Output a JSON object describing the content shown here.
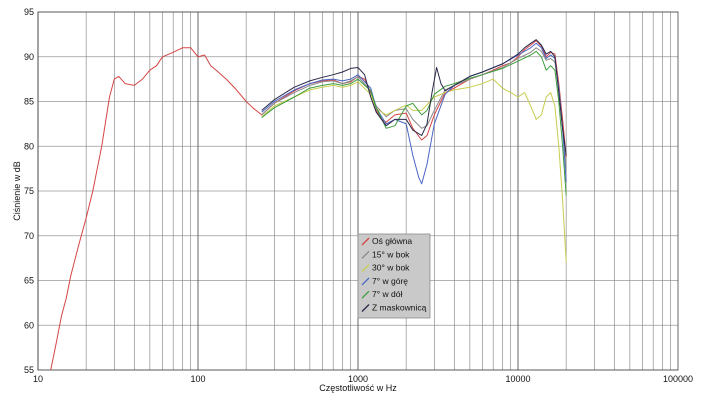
{
  "chart_data": {
    "type": "line",
    "title": "",
    "xlabel": "Częstotliwość w Hz",
    "ylabel": "Ciśnienie w dB",
    "x_scale": "log",
    "xlim": [
      10,
      100000
    ],
    "ylim": [
      55,
      95
    ],
    "grid": true,
    "legend_position": "center",
    "x_tick_labels": [
      "10",
      "100",
      "1000",
      "10000",
      "100000"
    ],
    "x_tick_values": [
      10,
      100,
      1000,
      10000,
      100000
    ],
    "y_tick_values": [
      55,
      60,
      65,
      70,
      75,
      80,
      85,
      90,
      95
    ],
    "series": [
      {
        "name": "Oś główna",
        "color": "#d64545",
        "points": [
          [
            12,
            55
          ],
          [
            13,
            58
          ],
          [
            14,
            61
          ],
          [
            15,
            63
          ],
          [
            16,
            65.5
          ],
          [
            18,
            69
          ],
          [
            20,
            72
          ],
          [
            22,
            75
          ],
          [
            25,
            80
          ],
          [
            28,
            85.5
          ],
          [
            30,
            87.5
          ],
          [
            32,
            87.8
          ],
          [
            35,
            87
          ],
          [
            40,
            86.8
          ],
          [
            45,
            87.5
          ],
          [
            50,
            88.5
          ],
          [
            55,
            89
          ],
          [
            60,
            90
          ],
          [
            70,
            90.5
          ],
          [
            80,
            91
          ],
          [
            90,
            91
          ],
          [
            100,
            90
          ],
          [
            110,
            90.2
          ],
          [
            120,
            89
          ],
          [
            130,
            88.5
          ],
          [
            150,
            87.5
          ],
          [
            170,
            86.5
          ],
          [
            200,
            85
          ],
          [
            220,
            84.3
          ],
          [
            250,
            83.5
          ],
          [
            300,
            84.8
          ],
          [
            400,
            86.2
          ],
          [
            500,
            87
          ],
          [
            600,
            87.3
          ],
          [
            700,
            87.4
          ],
          [
            800,
            87
          ],
          [
            900,
            87.2
          ],
          [
            1000,
            87.8
          ],
          [
            1100,
            87.5
          ],
          [
            1200,
            86
          ],
          [
            1300,
            84
          ],
          [
            1400,
            83
          ],
          [
            1500,
            82.7
          ],
          [
            1700,
            83.5
          ],
          [
            2000,
            83.7
          ],
          [
            2200,
            82
          ],
          [
            2500,
            80.7
          ],
          [
            2700,
            81.2
          ],
          [
            3000,
            83.5
          ],
          [
            3500,
            86
          ],
          [
            4000,
            86.5
          ],
          [
            5000,
            87.5
          ],
          [
            6000,
            88
          ],
          [
            7000,
            88.5
          ],
          [
            8000,
            89
          ],
          [
            9000,
            89.3
          ],
          [
            10000,
            90
          ],
          [
            11000,
            90.8
          ],
          [
            12000,
            91.3
          ],
          [
            13000,
            91.8
          ],
          [
            14000,
            91.2
          ],
          [
            15000,
            90
          ],
          [
            16000,
            90.5
          ],
          [
            17000,
            90.3
          ],
          [
            18000,
            87
          ],
          [
            19000,
            83
          ],
          [
            20000,
            78.8
          ]
        ]
      },
      {
        "name": "15° w bok",
        "color": "#8a8a8a",
        "points": [
          [
            250,
            83.5
          ],
          [
            300,
            84.8
          ],
          [
            400,
            86
          ],
          [
            500,
            86.8
          ],
          [
            600,
            87.2
          ],
          [
            700,
            87.3
          ],
          [
            800,
            87
          ],
          [
            900,
            87.3
          ],
          [
            1000,
            87.8
          ],
          [
            1200,
            86.2
          ],
          [
            1300,
            84.5
          ],
          [
            1500,
            83.3
          ],
          [
            1700,
            84
          ],
          [
            2000,
            84.2
          ],
          [
            2200,
            83
          ],
          [
            2500,
            82
          ],
          [
            2700,
            82.3
          ],
          [
            3000,
            84
          ],
          [
            3500,
            86.3
          ],
          [
            4000,
            86.8
          ],
          [
            5000,
            87.5
          ],
          [
            6000,
            88
          ],
          [
            8000,
            88.8
          ],
          [
            10000,
            89.8
          ],
          [
            12000,
            90.5
          ],
          [
            13000,
            91
          ],
          [
            14000,
            90.6
          ],
          [
            15000,
            89.6
          ],
          [
            16000,
            89.8
          ],
          [
            17000,
            89.4
          ],
          [
            18000,
            86.5
          ],
          [
            19000,
            82
          ],
          [
            20000,
            77.5
          ]
        ]
      },
      {
        "name": "30° w bok",
        "color": "#c8cd4f",
        "points": [
          [
            250,
            83.3
          ],
          [
            300,
            84.5
          ],
          [
            400,
            85.5
          ],
          [
            500,
            86.3
          ],
          [
            600,
            86.6
          ],
          [
            700,
            86.8
          ],
          [
            800,
            86.6
          ],
          [
            900,
            86.8
          ],
          [
            1000,
            87.2
          ],
          [
            1200,
            85.8
          ],
          [
            1300,
            84.2
          ],
          [
            1500,
            83.5
          ],
          [
            1700,
            84
          ],
          [
            2000,
            84.6
          ],
          [
            2200,
            84
          ],
          [
            2500,
            84
          ],
          [
            3000,
            85.5
          ],
          [
            3500,
            86
          ],
          [
            4000,
            86.3
          ],
          [
            5000,
            86.6
          ],
          [
            6000,
            87
          ],
          [
            7000,
            87.5
          ],
          [
            8000,
            86.5
          ],
          [
            9000,
            86
          ],
          [
            10000,
            85.5
          ],
          [
            11000,
            86
          ],
          [
            12000,
            84.5
          ],
          [
            13000,
            83
          ],
          [
            14000,
            83.5
          ],
          [
            15000,
            85.5
          ],
          [
            16000,
            86
          ],
          [
            17000,
            84.5
          ],
          [
            18000,
            80
          ],
          [
            19000,
            74
          ],
          [
            20000,
            67
          ]
        ]
      },
      {
        "name": "7° w górę",
        "color": "#4a64c4",
        "points": [
          [
            250,
            83.8
          ],
          [
            300,
            85
          ],
          [
            400,
            86.3
          ],
          [
            500,
            87
          ],
          [
            600,
            87.4
          ],
          [
            700,
            87.5
          ],
          [
            800,
            87.3
          ],
          [
            900,
            87.5
          ],
          [
            1000,
            88
          ],
          [
            1200,
            86.5
          ],
          [
            1300,
            84.3
          ],
          [
            1500,
            82.5
          ],
          [
            1700,
            83
          ],
          [
            2000,
            82.5
          ],
          [
            2200,
            79
          ],
          [
            2400,
            76.5
          ],
          [
            2500,
            75.8
          ],
          [
            2700,
            78
          ],
          [
            3000,
            82.5
          ],
          [
            3500,
            85.8
          ],
          [
            4000,
            86.8
          ],
          [
            5000,
            87.8
          ],
          [
            6000,
            88.3
          ],
          [
            8000,
            89.2
          ],
          [
            10000,
            90.2
          ],
          [
            12000,
            91
          ],
          [
            13000,
            91.5
          ],
          [
            14000,
            91
          ],
          [
            15000,
            89.8
          ],
          [
            16000,
            90.2
          ],
          [
            17000,
            89.8
          ],
          [
            18000,
            86.5
          ],
          [
            19000,
            82
          ],
          [
            20000,
            76
          ]
        ]
      },
      {
        "name": "7° w dół",
        "color": "#3f9e3f",
        "points": [
          [
            250,
            83.2
          ],
          [
            300,
            84.3
          ],
          [
            400,
            85.5
          ],
          [
            500,
            86.5
          ],
          [
            600,
            86.8
          ],
          [
            700,
            87
          ],
          [
            800,
            86.8
          ],
          [
            900,
            87
          ],
          [
            1000,
            87.5
          ],
          [
            1200,
            86.2
          ],
          [
            1300,
            84.3
          ],
          [
            1500,
            82
          ],
          [
            1700,
            82.3
          ],
          [
            2000,
            84.5
          ],
          [
            2200,
            84.8
          ],
          [
            2500,
            83.5
          ],
          [
            2700,
            84
          ],
          [
            3000,
            85.8
          ],
          [
            3500,
            86.7
          ],
          [
            4000,
            87
          ],
          [
            5000,
            87.6
          ],
          [
            6000,
            88
          ],
          [
            8000,
            88.7
          ],
          [
            10000,
            89.5
          ],
          [
            12000,
            90.2
          ],
          [
            13000,
            90.6
          ],
          [
            14000,
            90
          ],
          [
            15000,
            88.5
          ],
          [
            16000,
            89
          ],
          [
            17000,
            88.5
          ],
          [
            18000,
            85
          ],
          [
            19000,
            80
          ],
          [
            20000,
            74.5
          ]
        ]
      },
      {
        "name": "Z maskownicą",
        "color": "#2a2a4a",
        "points": [
          [
            250,
            84
          ],
          [
            300,
            85.2
          ],
          [
            400,
            86.6
          ],
          [
            500,
            87.3
          ],
          [
            600,
            87.7
          ],
          [
            700,
            88
          ],
          [
            800,
            88.3
          ],
          [
            900,
            88.7
          ],
          [
            1000,
            88.8
          ],
          [
            1100,
            88
          ],
          [
            1200,
            85.5
          ],
          [
            1300,
            83.8
          ],
          [
            1500,
            82.3
          ],
          [
            1700,
            83
          ],
          [
            2000,
            83
          ],
          [
            2200,
            81.8
          ],
          [
            2500,
            81.2
          ],
          [
            2700,
            82.5
          ],
          [
            2900,
            86
          ],
          [
            3100,
            88.8
          ],
          [
            3300,
            87
          ],
          [
            3500,
            86.2
          ],
          [
            4000,
            86.8
          ],
          [
            5000,
            87.8
          ],
          [
            6000,
            88.3
          ],
          [
            8000,
            89.2
          ],
          [
            10000,
            90.3
          ],
          [
            11000,
            91
          ],
          [
            12000,
            91.5
          ],
          [
            13000,
            91.9
          ],
          [
            14000,
            91.3
          ],
          [
            15000,
            90.3
          ],
          [
            16000,
            90.6
          ],
          [
            17000,
            90
          ],
          [
            18000,
            86
          ],
          [
            19000,
            82
          ],
          [
            20000,
            79
          ]
        ]
      }
    ]
  }
}
